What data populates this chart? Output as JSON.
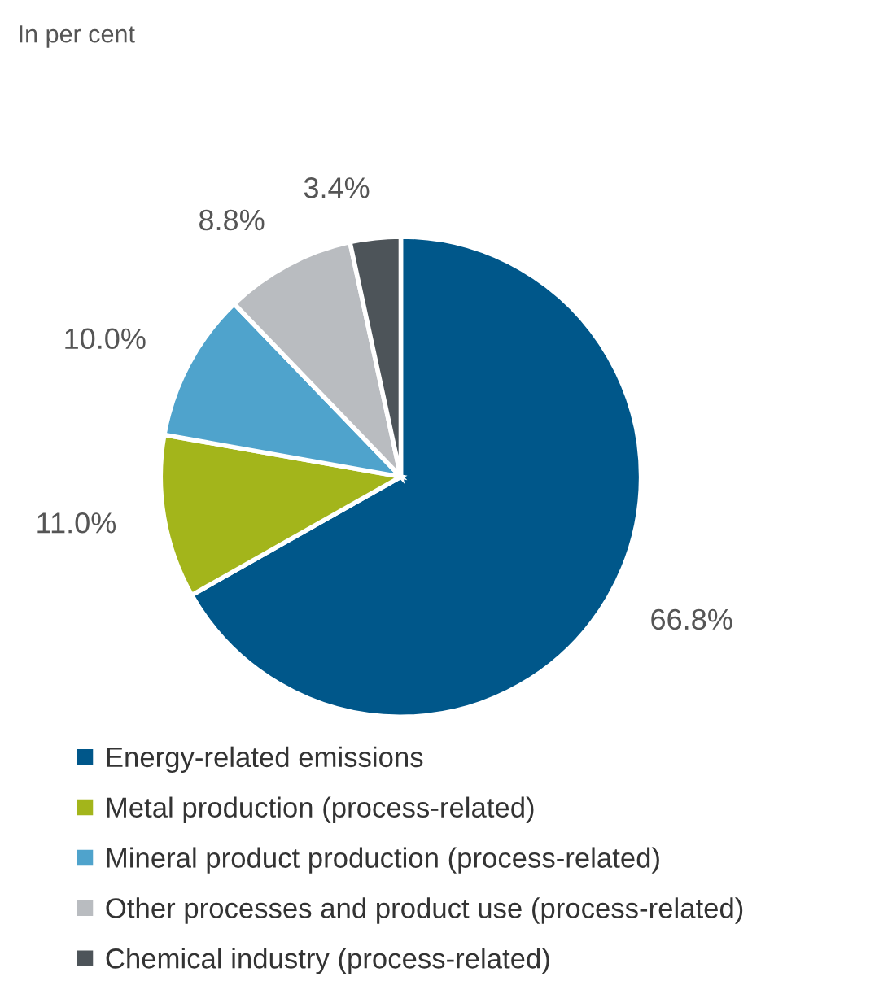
{
  "chart_data": {
    "type": "pie",
    "subtitle": "In per cent",
    "categories": [
      "Energy-related emissions",
      "Metal production (process-related)",
      "Mineral product production (process-related)",
      "Other processes and product use (process-related)",
      "Chemical industry (process-related)"
    ],
    "values": [
      66.8,
      11.0,
      10.0,
      8.8,
      3.4
    ],
    "value_labels": [
      "66.8%",
      "11.0%",
      "10.0%",
      "8.8%",
      "3.4%"
    ],
    "colors": [
      "#00578a",
      "#a3b51b",
      "#4fa3cc",
      "#b9bcc0",
      "#4d5459"
    ],
    "legend": "bottom"
  }
}
